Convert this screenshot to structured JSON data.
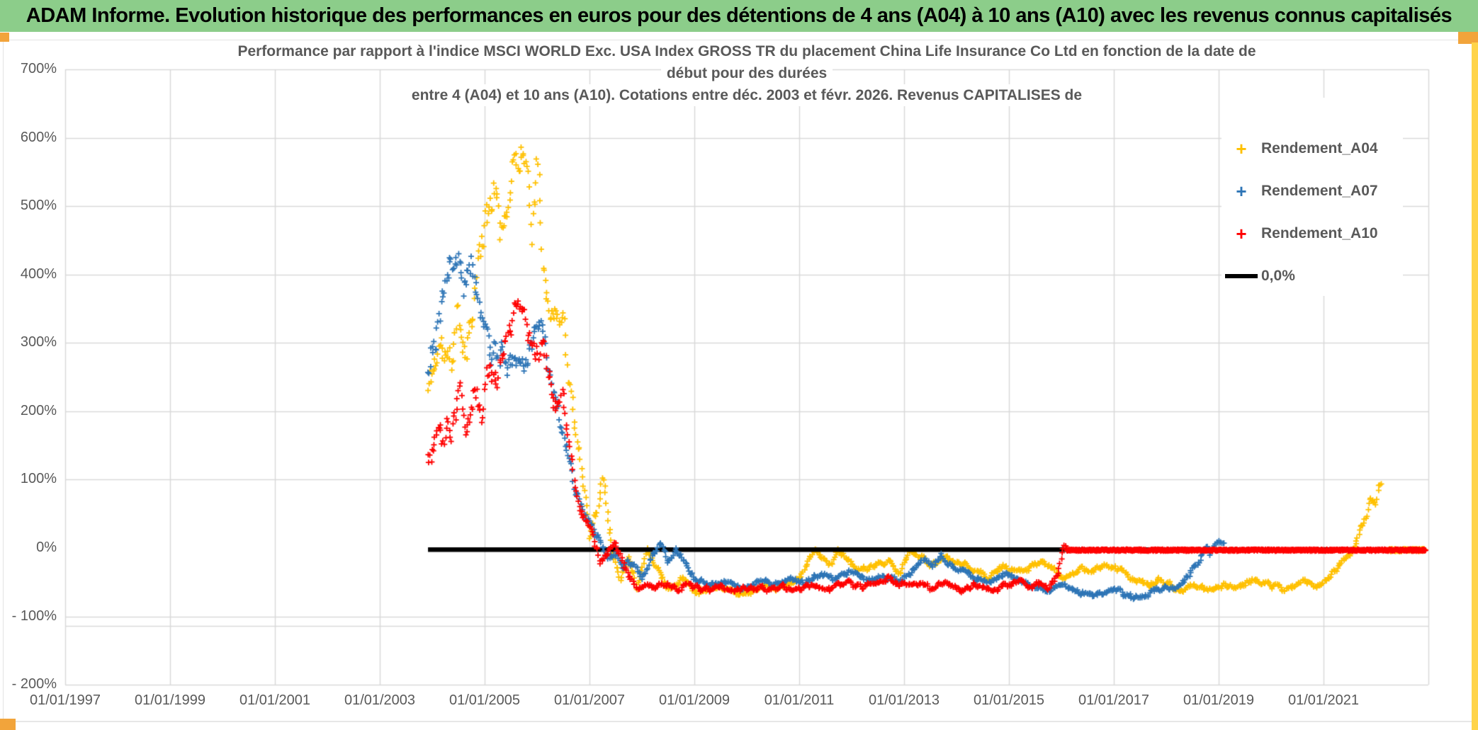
{
  "page": {
    "header_title": "ADAM Informe. Evolution historique des performances en euros pour des détentions de 4 ans (A04) à 10 ans (A10) avec les revenus connus capitalisés",
    "header_bg": "#8CCD8A",
    "corner_accent_color": "#F2A43B",
    "edge_bar_color": "#FFD44A",
    "text_color": "#595959",
    "grid_color": "#D9D9D9"
  },
  "chart_data": {
    "type": "scatter",
    "title_lines": [
      "Performance par rapport à l'indice MSCI WORLD Exc. USA Index GROSS TR  du placement China Life Insurance Co Ltd en fonction de la date de",
      "début pour des durées",
      "entre 4 (A04) et 10 ans (A10). Cotations entre déc. 2003 et févr. 2026. Revenus CAPITALISES de"
    ],
    "x_axis": {
      "tick_labels": [
        "01/01/1997",
        "01/01/1999",
        "01/01/2001",
        "01/01/2003",
        "01/01/2005",
        "01/01/2007",
        "01/01/2009",
        "01/01/2011",
        "01/01/2013",
        "01/01/2015",
        "01/01/2017",
        "01/01/2019",
        "01/01/2021"
      ],
      "tick_years": [
        1997,
        1999,
        2001,
        2003,
        2005,
        2007,
        2009,
        2011,
        2013,
        2015,
        2017,
        2019,
        2021
      ],
      "range_years": [
        1997,
        2023
      ],
      "gridline_interval_years": 2
    },
    "y_axis": {
      "tick_labels": [
        "700%",
        "600%",
        "500%",
        "400%",
        "300%",
        "200%",
        "100%",
        "0%",
        "- 100%",
        "- 200%"
      ],
      "tick_values": [
        700,
        600,
        500,
        400,
        300,
        200,
        100,
        0,
        -100,
        -200
      ],
      "unit": "%",
      "range": [
        -200,
        700
      ],
      "gridline_at_zero": false,
      "double_gridline_below_minus100": true
    },
    "legend": {
      "position": "right-inside",
      "items": [
        {
          "label": "Rendement_A04",
          "marker": "+",
          "color": "#FFC000"
        },
        {
          "label": "Rendement_A07",
          "marker": "+",
          "color": "#2E75B6"
        },
        {
          "label": "Rendement_A10",
          "marker": "+",
          "color": "#FF0000"
        },
        {
          "label": "0,0%",
          "marker": "line",
          "color": "#000000"
        }
      ]
    },
    "zero_line": {
      "label": "0,0%",
      "color": "#000000",
      "y_value": 0,
      "span_years": [
        2003.92,
        2022.95
      ]
    },
    "series": [
      {
        "name": "Rendement_A04",
        "color": "#FFC000",
        "marker": "+",
        "points_per_year": 52,
        "anchors": [
          [
            2003.92,
            230,
            40
          ],
          [
            2004.15,
            300,
            45
          ],
          [
            2004.35,
            260,
            40
          ],
          [
            2004.5,
            340,
            50
          ],
          [
            2004.65,
            300,
            40
          ],
          [
            2004.9,
            430,
            45
          ],
          [
            2005.05,
            470,
            50
          ],
          [
            2005.2,
            520,
            45
          ],
          [
            2005.35,
            455,
            40
          ],
          [
            2005.55,
            560,
            35
          ],
          [
            2005.75,
            590,
            28
          ],
          [
            2005.9,
            480,
            45
          ],
          [
            2006.0,
            555,
            40
          ],
          [
            2006.1,
            430,
            35
          ],
          [
            2006.3,
            340,
            28
          ],
          [
            2006.5,
            345,
            25
          ],
          [
            2006.6,
            250,
            25
          ],
          [
            2006.75,
            155,
            20
          ],
          [
            2006.85,
            125,
            18
          ],
          [
            2007.0,
            20,
            15
          ],
          [
            2007.15,
            60,
            15
          ],
          [
            2007.25,
            108,
            12
          ],
          [
            2007.45,
            0,
            10
          ],
          [
            2007.6,
            -45,
            8
          ],
          [
            2007.75,
            -10,
            8
          ],
          [
            2007.9,
            -55,
            8
          ],
          [
            2008.1,
            2,
            8
          ],
          [
            2008.3,
            -25,
            8
          ],
          [
            2008.5,
            -60,
            7
          ],
          [
            2008.8,
            -45,
            7
          ],
          [
            2009.0,
            -62,
            6
          ],
          [
            2009.5,
            -55,
            6
          ],
          [
            2009.9,
            -68,
            6
          ],
          [
            2010.3,
            -55,
            6
          ],
          [
            2010.6,
            -60,
            6
          ],
          [
            2011.0,
            -45,
            6
          ],
          [
            2011.3,
            -5,
            7
          ],
          [
            2011.6,
            -22,
            6
          ],
          [
            2011.75,
            -5,
            7
          ],
          [
            2011.9,
            -12,
            6
          ],
          [
            2012.1,
            -35,
            6
          ],
          [
            2012.4,
            -30,
            6
          ],
          [
            2012.7,
            -18,
            6
          ],
          [
            2012.9,
            -40,
            6
          ],
          [
            2013.1,
            -5,
            7
          ],
          [
            2013.3,
            -12,
            6
          ],
          [
            2013.5,
            -25,
            6
          ],
          [
            2013.8,
            -12,
            6
          ],
          [
            2014.0,
            -22,
            6
          ],
          [
            2014.3,
            -28,
            6
          ],
          [
            2014.6,
            -45,
            6
          ],
          [
            2014.9,
            -28,
            6
          ],
          [
            2015.2,
            -38,
            6
          ],
          [
            2015.5,
            -22,
            6
          ],
          [
            2015.8,
            -28,
            6
          ],
          [
            2016.1,
            -45,
            6
          ],
          [
            2016.4,
            -30,
            6
          ],
          [
            2016.6,
            -35,
            6
          ],
          [
            2016.9,
            -25,
            6
          ],
          [
            2017.3,
            -40,
            6
          ],
          [
            2017.6,
            -55,
            6
          ],
          [
            2017.9,
            -48,
            6
          ],
          [
            2018.2,
            -60,
            6
          ],
          [
            2018.5,
            -55,
            6
          ],
          [
            2018.8,
            -62,
            6
          ],
          [
            2019.1,
            -52,
            6
          ],
          [
            2019.4,
            -58,
            6
          ],
          [
            2019.7,
            -45,
            6
          ],
          [
            2020.0,
            -55,
            6
          ],
          [
            2020.3,
            -60,
            6
          ],
          [
            2020.6,
            -50,
            6
          ],
          [
            2020.9,
            -55,
            6
          ],
          [
            2021.2,
            -35,
            6
          ],
          [
            2021.5,
            -10,
            7
          ],
          [
            2021.65,
            10,
            8
          ],
          [
            2021.8,
            45,
            8
          ],
          [
            2021.9,
            75,
            8
          ],
          [
            2022.0,
            62,
            7
          ],
          [
            2022.05,
            90,
            6
          ],
          [
            2022.1,
            95,
            5
          ]
        ],
        "zero_tail_years": [
          2022.25,
          2022.93
        ]
      },
      {
        "name": "Rendement_A07",
        "color": "#2E75B6",
        "marker": "+",
        "points_per_year": 52,
        "anchors": [
          [
            2003.92,
            260,
            45
          ],
          [
            2004.1,
            330,
            50
          ],
          [
            2004.25,
            395,
            45
          ],
          [
            2004.4,
            420,
            40
          ],
          [
            2004.5,
            448,
            32
          ],
          [
            2004.6,
            390,
            45
          ],
          [
            2004.75,
            425,
            38
          ],
          [
            2004.9,
            340,
            45
          ],
          [
            2005.1,
            270,
            40
          ],
          [
            2005.3,
            280,
            40
          ],
          [
            2005.5,
            265,
            35
          ],
          [
            2005.7,
            260,
            30
          ],
          [
            2005.9,
            300,
            35
          ],
          [
            2006.05,
            335,
            28
          ],
          [
            2006.15,
            300,
            30
          ],
          [
            2006.3,
            255,
            25
          ],
          [
            2006.45,
            180,
            25
          ],
          [
            2006.6,
            120,
            20
          ],
          [
            2006.8,
            75,
            15
          ],
          [
            2007.0,
            40,
            12
          ],
          [
            2007.2,
            15,
            10
          ],
          [
            2007.35,
            -15,
            8
          ],
          [
            2007.5,
            -5,
            8
          ],
          [
            2007.65,
            -30,
            8
          ],
          [
            2007.8,
            -20,
            8
          ],
          [
            2008.0,
            -45,
            7
          ],
          [
            2008.2,
            -10,
            8
          ],
          [
            2008.35,
            3,
            8
          ],
          [
            2008.5,
            -20,
            7
          ],
          [
            2008.65,
            -2,
            8
          ],
          [
            2008.8,
            -15,
            7
          ],
          [
            2009.0,
            -45,
            6
          ],
          [
            2009.3,
            -55,
            6
          ],
          [
            2009.6,
            -50,
            6
          ],
          [
            2009.9,
            -60,
            6
          ],
          [
            2010.2,
            -48,
            6
          ],
          [
            2010.5,
            -55,
            6
          ],
          [
            2010.8,
            -45,
            6
          ],
          [
            2011.1,
            -52,
            6
          ],
          [
            2011.4,
            -40,
            6
          ],
          [
            2011.7,
            -45,
            6
          ],
          [
            2012.0,
            -35,
            6
          ],
          [
            2012.3,
            -48,
            6
          ],
          [
            2012.6,
            -40,
            6
          ],
          [
            2012.9,
            -52,
            6
          ],
          [
            2013.2,
            -30,
            6
          ],
          [
            2013.4,
            -18,
            7
          ],
          [
            2013.55,
            -28,
            6
          ],
          [
            2013.7,
            -8,
            7
          ],
          [
            2013.85,
            -25,
            6
          ],
          [
            2014.0,
            -30,
            6
          ],
          [
            2014.3,
            -40,
            6
          ],
          [
            2014.6,
            -50,
            6
          ],
          [
            2014.9,
            -38,
            6
          ],
          [
            2015.1,
            -45,
            6
          ],
          [
            2015.4,
            -55,
            6
          ],
          [
            2015.7,
            -62,
            6
          ],
          [
            2016.0,
            -55,
            6
          ],
          [
            2016.3,
            -65,
            6
          ],
          [
            2016.6,
            -70,
            6
          ],
          [
            2016.9,
            -60,
            6
          ],
          [
            2017.2,
            -68,
            6
          ],
          [
            2017.5,
            -72,
            6
          ],
          [
            2017.8,
            -62,
            6
          ],
          [
            2018.0,
            -55,
            6
          ],
          [
            2018.2,
            -60,
            6
          ],
          [
            2018.4,
            -45,
            6
          ],
          [
            2018.5,
            -30,
            7
          ],
          [
            2018.65,
            -20,
            7
          ],
          [
            2018.75,
            5,
            8
          ],
          [
            2018.85,
            -8,
            7
          ],
          [
            2018.95,
            8,
            7
          ],
          [
            2019.05,
            12,
            6
          ],
          [
            2019.1,
            5,
            5
          ]
        ],
        "zero_tail_years": null
      },
      {
        "name": "Rendement_A10",
        "color": "#FF0000",
        "marker": "+",
        "points_per_year": 52,
        "anchors": [
          [
            2003.92,
            120,
            30
          ],
          [
            2004.05,
            155,
            35
          ],
          [
            2004.2,
            140,
            30
          ],
          [
            2004.35,
            185,
            35
          ],
          [
            2004.5,
            210,
            40
          ],
          [
            2004.65,
            185,
            35
          ],
          [
            2004.8,
            235,
            40
          ],
          [
            2004.95,
            200,
            35
          ],
          [
            2005.1,
            280,
            35
          ],
          [
            2005.25,
            255,
            30
          ],
          [
            2005.4,
            310,
            35
          ],
          [
            2005.55,
            345,
            30
          ],
          [
            2005.65,
            370,
            22
          ],
          [
            2005.8,
            330,
            30
          ],
          [
            2005.95,
            280,
            30
          ],
          [
            2006.1,
            300,
            25
          ],
          [
            2006.25,
            255,
            25
          ],
          [
            2006.4,
            200,
            25
          ],
          [
            2006.5,
            230,
            20
          ],
          [
            2006.6,
            150,
            20
          ],
          [
            2006.75,
            80,
            15
          ],
          [
            2006.9,
            50,
            12
          ],
          [
            2007.05,
            25,
            10
          ],
          [
            2007.2,
            -18,
            8
          ],
          [
            2007.35,
            -8,
            8
          ],
          [
            2007.5,
            5,
            8
          ],
          [
            2007.6,
            -12,
            8
          ],
          [
            2007.75,
            -40,
            7
          ],
          [
            2007.9,
            -62,
            6
          ],
          [
            2008.1,
            -50,
            6
          ],
          [
            2008.3,
            -58,
            6
          ],
          [
            2008.5,
            -52,
            6
          ],
          [
            2008.7,
            -60,
            6
          ],
          [
            2008.9,
            -55,
            6
          ],
          [
            2009.2,
            -62,
            6
          ],
          [
            2009.5,
            -58,
            6
          ],
          [
            2009.8,
            -62,
            6
          ],
          [
            2010.1,
            -58,
            6
          ],
          [
            2010.4,
            -62,
            6
          ],
          [
            2010.7,
            -58,
            6
          ],
          [
            2011.0,
            -62,
            6
          ],
          [
            2011.3,
            -55,
            6
          ],
          [
            2011.6,
            -60,
            6
          ],
          [
            2011.9,
            -52,
            6
          ],
          [
            2012.2,
            -58,
            6
          ],
          [
            2012.5,
            -48,
            6
          ],
          [
            2012.7,
            -42,
            6
          ],
          [
            2012.9,
            -55,
            6
          ],
          [
            2013.2,
            -48,
            6
          ],
          [
            2013.5,
            -58,
            6
          ],
          [
            2013.8,
            -52,
            6
          ],
          [
            2014.1,
            -62,
            6
          ],
          [
            2014.4,
            -55,
            6
          ],
          [
            2014.7,
            -62,
            6
          ],
          [
            2015.0,
            -55,
            6
          ],
          [
            2015.2,
            -48,
            6
          ],
          [
            2015.45,
            -58,
            6
          ],
          [
            2015.6,
            -50,
            6
          ],
          [
            2015.75,
            -60,
            6
          ],
          [
            2015.9,
            -45,
            6
          ],
          [
            2016.0,
            -20,
            7
          ],
          [
            2016.05,
            5,
            5
          ],
          [
            2016.1,
            0,
            2
          ]
        ],
        "zero_tail_years": [
          2016.1,
          2022.95
        ]
      }
    ]
  }
}
